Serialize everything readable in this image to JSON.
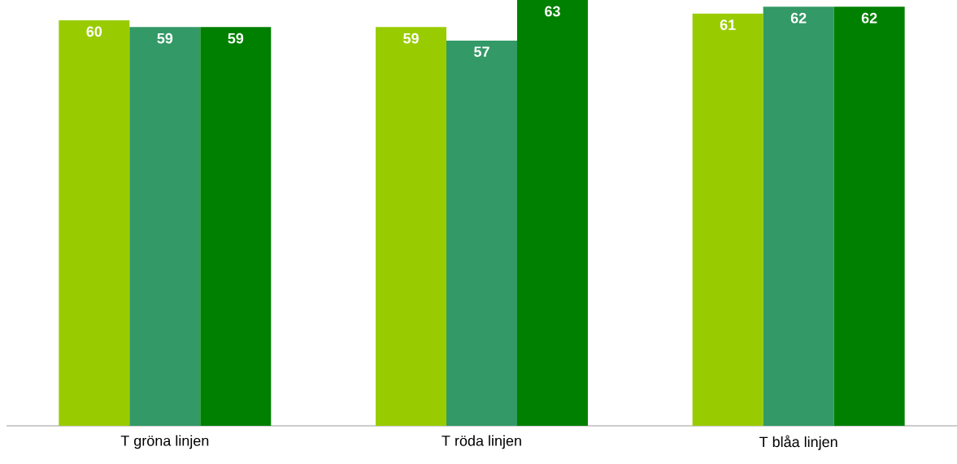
{
  "chart_data": {
    "type": "bar",
    "categories": [
      "T gröna linjen",
      "T röda linjen",
      "T blåa linjen"
    ],
    "series": [
      {
        "color": "#99cc00",
        "values": [
          60,
          59,
          61
        ]
      },
      {
        "color": "#339966",
        "values": [
          59,
          57,
          62
        ]
      },
      {
        "color": "#008000",
        "values": [
          59,
          63,
          62
        ]
      }
    ],
    "ylim": [
      0,
      63
    ],
    "data_labels": true
  }
}
